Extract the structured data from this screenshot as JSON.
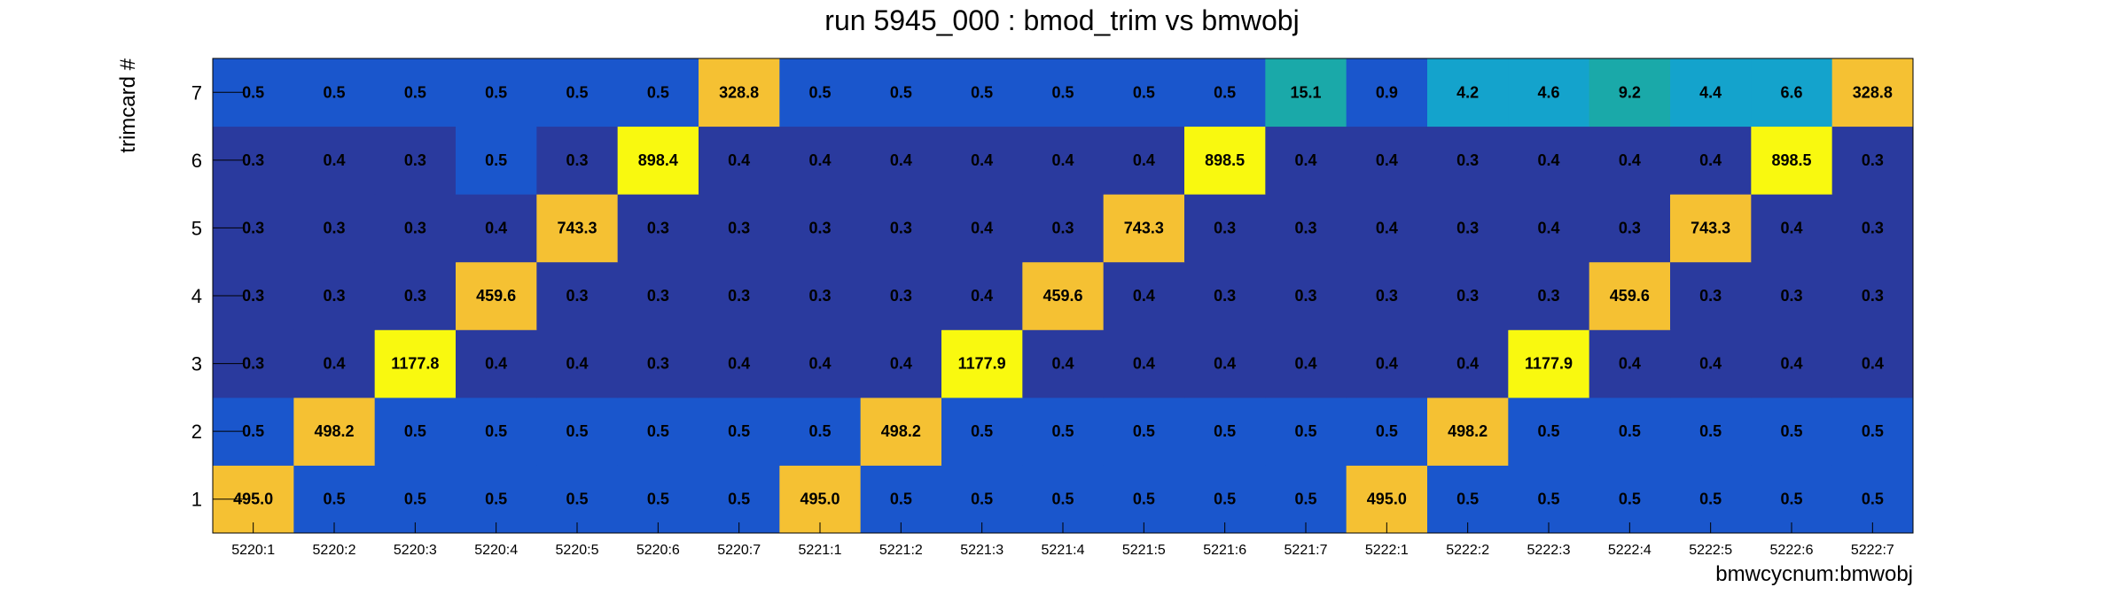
{
  "chart_data": {
    "type": "heatmap",
    "title": "run 5945_000 : bmod_trim vs bmwobj",
    "xlabel": "bmwcycnum:bmwobj",
    "ylabel": "trimcard #",
    "x_categories": [
      "5220:1",
      "5220:2",
      "5220:3",
      "5220:4",
      "5220:5",
      "5220:6",
      "5220:7",
      "5221:1",
      "5221:2",
      "5221:3",
      "5221:4",
      "5221:5",
      "5221:6",
      "5221:7",
      "5222:1",
      "5222:2",
      "5222:3",
      "5222:4",
      "5222:5",
      "5222:6",
      "5222:7"
    ],
    "y_categories": [
      "1",
      "2",
      "3",
      "4",
      "5",
      "6",
      "7"
    ],
    "labels": [
      [
        "495.0",
        "0.5",
        "0.5",
        "0.5",
        "0.5",
        "0.5",
        "0.5",
        "495.0",
        "0.5",
        "0.5",
        "0.5",
        "0.5",
        "0.5",
        "0.5",
        "495.0",
        "0.5",
        "0.5",
        "0.5",
        "0.5",
        "0.5",
        "0.5"
      ],
      [
        "0.5",
        "498.2",
        "0.5",
        "0.5",
        "0.5",
        "0.5",
        "0.5",
        "0.5",
        "498.2",
        "0.5",
        "0.5",
        "0.5",
        "0.5",
        "0.5",
        "0.5",
        "498.2",
        "0.5",
        "0.5",
        "0.5",
        "0.5",
        "0.5"
      ],
      [
        "0.3",
        "0.4",
        "1177.8",
        "0.4",
        "0.4",
        "0.3",
        "0.4",
        "0.4",
        "0.4",
        "1177.9",
        "0.4",
        "0.4",
        "0.4",
        "0.4",
        "0.4",
        "0.4",
        "1177.9",
        "0.4",
        "0.4",
        "0.4",
        "0.4"
      ],
      [
        "0.3",
        "0.3",
        "0.3",
        "459.6",
        "0.3",
        "0.3",
        "0.3",
        "0.3",
        "0.3",
        "0.4",
        "459.6",
        "0.4",
        "0.3",
        "0.3",
        "0.3",
        "0.3",
        "0.3",
        "459.6",
        "0.3",
        "0.3",
        "0.3"
      ],
      [
        "0.3",
        "0.3",
        "0.3",
        "0.4",
        "743.3",
        "0.3",
        "0.3",
        "0.3",
        "0.3",
        "0.4",
        "0.3",
        "743.3",
        "0.3",
        "0.3",
        "0.4",
        "0.3",
        "0.4",
        "0.3",
        "743.3",
        "0.4",
        "0.3"
      ],
      [
        "0.3",
        "0.4",
        "0.3",
        "0.5",
        "0.3",
        "898.4",
        "0.4",
        "0.4",
        "0.4",
        "0.4",
        "0.4",
        "0.4",
        "898.5",
        "0.4",
        "0.4",
        "0.3",
        "0.4",
        "0.4",
        "0.4",
        "898.5",
        "0.3"
      ],
      [
        "0.5",
        "0.5",
        "0.5",
        "0.5",
        "0.5",
        "0.5",
        "328.8",
        "0.5",
        "0.5",
        "0.5",
        "0.5",
        "0.5",
        "0.5",
        "15.1",
        "0.9",
        "4.2",
        "4.6",
        "9.2",
        "4.4",
        "6.6",
        "328.8"
      ]
    ],
    "colors": {
      "low": "#2a3a9e",
      "mid_low": "#1a56cc",
      "teal": "#1aa9a9",
      "cyan": "#14a3cc",
      "orange": "#f5c133",
      "yellow": "#f9f90f"
    },
    "grid": false,
    "legend": "none"
  }
}
